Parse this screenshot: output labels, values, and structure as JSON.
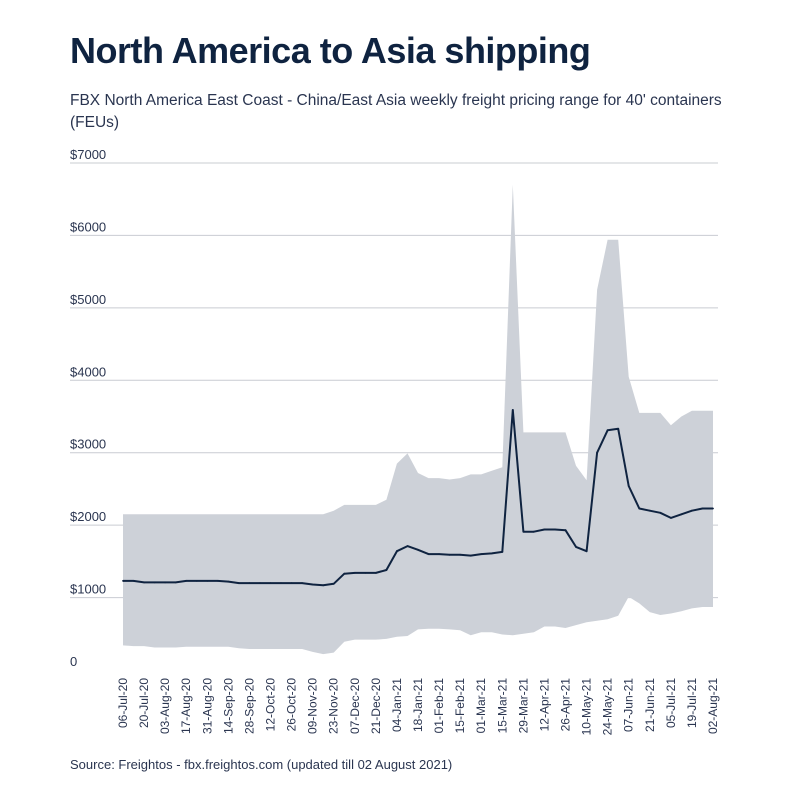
{
  "header": {
    "title": "North America to Asia shipping",
    "subtitle": "FBX North America East Coast - China/East Asia weekly freight pricing range for 40' containers (FEUs)"
  },
  "footer": {
    "source": "Source: Freightos - fbx.freightos.com (updated till 02 August 2021)"
  },
  "chart_data": {
    "type": "line",
    "title": "North America to Asia shipping",
    "subtitle": "FBX North America East Coast - China/East Asia weekly freight pricing range for 40' containers (FEUs)",
    "ylim": [
      0,
      7000
    ],
    "y_ticks": [
      {
        "value": 0,
        "label": "0"
      },
      {
        "value": 1000,
        "label": "$1000"
      },
      {
        "value": 2000,
        "label": "$2000"
      },
      {
        "value": 3000,
        "label": "$3000"
      },
      {
        "value": 4000,
        "label": "$4000"
      },
      {
        "value": 5000,
        "label": "$5000"
      },
      {
        "value": 6000,
        "label": "$6000"
      },
      {
        "value": 7000,
        "label": "$7000"
      }
    ],
    "grid": true,
    "categories": [
      "06-Jul-20",
      "13-Jul-20",
      "20-Jul-20",
      "27-Jul-20",
      "03-Aug-20",
      "10-Aug-20",
      "17-Aug-20",
      "24-Aug-20",
      "31-Aug-20",
      "07-Sep-20",
      "14-Sep-20",
      "21-Sep-20",
      "28-Sep-20",
      "05-Oct-20",
      "12-Oct-20",
      "19-Oct-20",
      "26-Oct-20",
      "02-Nov-20",
      "09-Nov-20",
      "16-Nov-20",
      "23-Nov-20",
      "30-Nov-20",
      "07-Dec-20",
      "14-Dec-20",
      "21-Dec-20",
      "28-Dec-20",
      "04-Jan-21",
      "11-Jan-21",
      "18-Jan-21",
      "25-Jan-21",
      "01-Feb-21",
      "08-Feb-21",
      "15-Feb-21",
      "22-Feb-21",
      "01-Mar-21",
      "08-Mar-21",
      "15-Mar-21",
      "22-Mar-21",
      "29-Mar-21",
      "05-Apr-21",
      "12-Apr-21",
      "19-Apr-21",
      "26-Apr-21",
      "03-May-21",
      "10-May-21",
      "17-May-21",
      "24-May-21",
      "31-May-21",
      "07-Jun-21",
      "14-Jun-21",
      "21-Jun-21",
      "28-Jun-21",
      "05-Jul-21",
      "12-Jul-21",
      "19-Jul-21",
      "26-Jul-21",
      "02-Aug-21"
    ],
    "x_tick_labels": [
      "06-Jul-20",
      "20-Jul-20",
      "03-Aug-20",
      "17-Aug-20",
      "31-Aug-20",
      "14-Sep-20",
      "28-Sep-20",
      "12-Oct-20",
      "26-Oct-20",
      "09-Nov-20",
      "23-Nov-20",
      "07-Dec-20",
      "21-Dec-20",
      "04-Jan-21",
      "18-Jan-21",
      "01-Feb-21",
      "15-Feb-21",
      "01-Mar-21",
      "15-Mar-21",
      "29-Mar-21",
      "12-Apr-21",
      "26-Apr-21",
      "10-May-21",
      "24-May-21",
      "07-Jun-21",
      "21-Jun-21",
      "05-Jul-21",
      "19-Jul-21",
      "02-Aug-21"
    ],
    "series": [
      {
        "values": [
          1230,
          1230,
          1210,
          1210,
          1210,
          1210,
          1230,
          1230,
          1230,
          1230,
          1220,
          1200,
          1200,
          1200,
          1200,
          1200,
          1200,
          1200,
          1180,
          1170,
          1190,
          1330,
          1340,
          1340,
          1340,
          1380,
          1640,
          1710,
          1660,
          1600,
          1600,
          1590,
          1590,
          1580,
          1600,
          1610,
          1630,
          3590,
          1910,
          1910,
          1940,
          1940,
          1930,
          1700,
          1640,
          3000,
          3310,
          3330,
          2540,
          2230,
          2200,
          2170,
          2100,
          2150,
          2200,
          2230,
          2230
        ]
      }
    ],
    "range_band": {
      "high": [
        2150,
        2150,
        2150,
        2150,
        2150,
        2150,
        2150,
        2150,
        2150,
        2150,
        2150,
        2150,
        2150,
        2150,
        2150,
        2150,
        2150,
        2150,
        2150,
        2150,
        2200,
        2280,
        2280,
        2280,
        2280,
        2350,
        2850,
        2990,
        2720,
        2650,
        2650,
        2630,
        2650,
        2700,
        2700,
        2750,
        2800,
        6700,
        3280,
        3280,
        3280,
        3280,
        3280,
        2820,
        2620,
        5250,
        5940,
        5940,
        4050,
        3550,
        3550,
        3550,
        3380,
        3500,
        3580,
        3580,
        3580
      ],
      "low": [
        340,
        330,
        330,
        310,
        310,
        310,
        320,
        320,
        320,
        320,
        320,
        300,
        290,
        290,
        290,
        290,
        290,
        290,
        250,
        220,
        240,
        390,
        420,
        420,
        420,
        430,
        460,
        470,
        560,
        570,
        570,
        560,
        550,
        480,
        520,
        520,
        490,
        480,
        500,
        520,
        600,
        600,
        580,
        620,
        660,
        680,
        700,
        750,
        1010,
        920,
        800,
        760,
        780,
        810,
        850,
        870,
        870
      ]
    }
  }
}
